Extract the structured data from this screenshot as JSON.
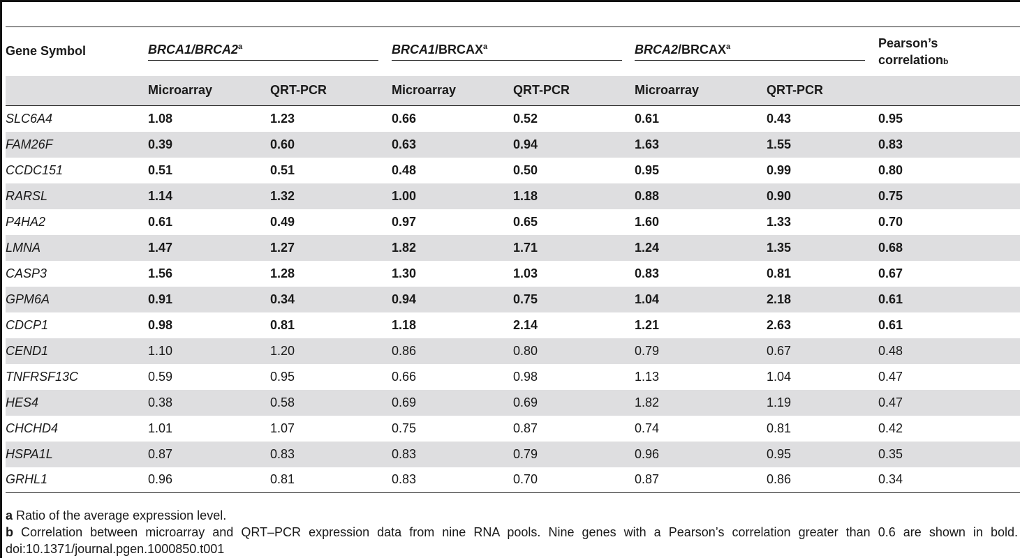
{
  "headers": {
    "gene_symbol": "Gene Symbol",
    "group1_gene1": "BRCA1",
    "group1_sep": "/",
    "group1_gene2": "BRCA2",
    "group1_sup": "a",
    "group2_gene": "BRCA1",
    "group2_rest": "/BRCAX",
    "group2_sup": "a",
    "group3_gene": "BRCA2",
    "group3_rest": "/BRCAX",
    "group3_sup": "a",
    "pearson_line1": "Pearson’s",
    "pearson_line2": "correlation",
    "pearson_sup": "b",
    "microarray": "Microarray",
    "qrtpcr": "QRT-PCR"
  },
  "rows": [
    {
      "gene": "SLC6A4",
      "values": [
        "1.08",
        "1.23",
        "0.66",
        "0.52",
        "0.61",
        "0.43",
        "0.95"
      ]
    },
    {
      "gene": "FAM26F",
      "values": [
        "0.39",
        "0.60",
        "0.63",
        "0.94",
        "1.63",
        "1.55",
        "0.83"
      ]
    },
    {
      "gene": "CCDC151",
      "values": [
        "0.51",
        "0.51",
        "0.48",
        "0.50",
        "0.95",
        "0.99",
        "0.80"
      ]
    },
    {
      "gene": "RARSL",
      "values": [
        "1.14",
        "1.32",
        "1.00",
        "1.18",
        "0.88",
        "0.90",
        "0.75"
      ]
    },
    {
      "gene": "P4HA2",
      "values": [
        "0.61",
        "0.49",
        "0.97",
        "0.65",
        "1.60",
        "1.33",
        "0.70"
      ]
    },
    {
      "gene": "LMNA",
      "values": [
        "1.47",
        "1.27",
        "1.82",
        "1.71",
        "1.24",
        "1.35",
        "0.68"
      ]
    },
    {
      "gene": "CASP3",
      "values": [
        "1.56",
        "1.28",
        "1.30",
        "1.03",
        "0.83",
        "0.81",
        "0.67"
      ]
    },
    {
      "gene": "GPM6A",
      "values": [
        "0.91",
        "0.34",
        "0.94",
        "0.75",
        "1.04",
        "2.18",
        "0.61"
      ]
    },
    {
      "gene": "CDCP1",
      "values": [
        "0.98",
        "0.81",
        "1.18",
        "2.14",
        "1.21",
        "2.63",
        "0.61"
      ]
    },
    {
      "gene": "CEND1",
      "values": [
        "1.10",
        "1.20",
        "0.86",
        "0.80",
        "0.79",
        "0.67",
        "0.48"
      ]
    },
    {
      "gene": "TNFRSF13C",
      "values": [
        "0.59",
        "0.95",
        "0.66",
        "0.98",
        "1.13",
        "1.04",
        "0.47"
      ]
    },
    {
      "gene": "HES4",
      "values": [
        "0.38",
        "0.58",
        "0.69",
        "0.69",
        "1.82",
        "1.19",
        "0.47"
      ]
    },
    {
      "gene": "CHCHD4",
      "values": [
        "1.01",
        "1.07",
        "0.75",
        "0.87",
        "0.74",
        "0.81",
        "0.42"
      ]
    },
    {
      "gene": "HSPA1L",
      "values": [
        "0.87",
        "0.83",
        "0.83",
        "0.79",
        "0.96",
        "0.95",
        "0.35"
      ]
    },
    {
      "gene": "GRHL1",
      "values": [
        "0.96",
        "0.81",
        "0.83",
        "0.70",
        "0.87",
        "0.86",
        "0.34"
      ]
    }
  ],
  "footnotes": {
    "a_mark": "a",
    "a_text": "Ratio of the average expression level.",
    "b_mark": "b",
    "b_text": "Correlation between microarray and QRT–PCR expression data from nine RNA pools. Nine genes with a Pearson’s correlation greater than 0.6 are shown in bold.",
    "doi": "doi:10.1371/journal.pgen.1000850.t001"
  }
}
